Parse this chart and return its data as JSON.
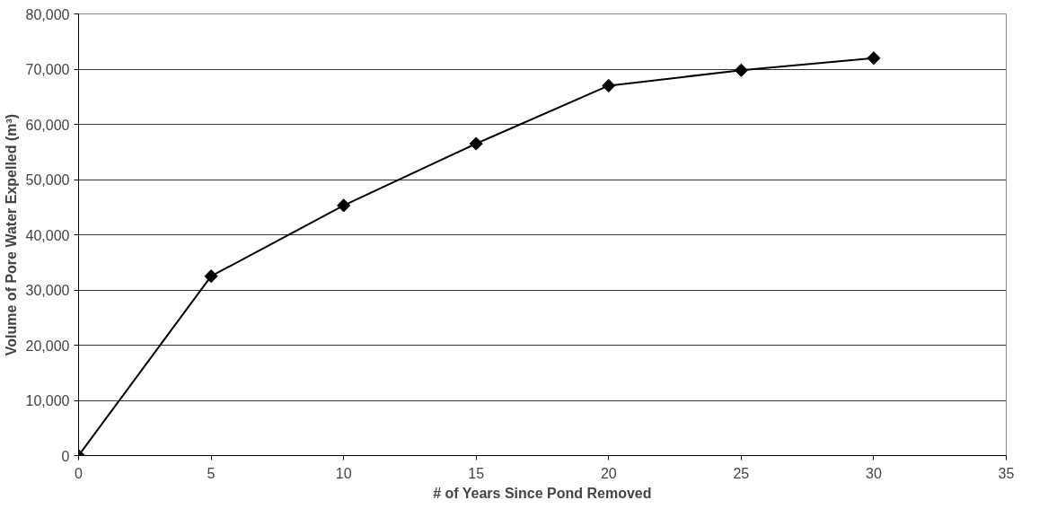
{
  "chart_data": {
    "type": "line",
    "xlabel": "# of Years Since Pond Removed",
    "ylabel": "Volume of Pore Water Expelled (m³)",
    "x": [
      0,
      5,
      10,
      15,
      20,
      25,
      30
    ],
    "series": [
      {
        "color": "#000000",
        "values": [
          0,
          32500,
          45300,
          56500,
          67000,
          69800,
          72000
        ]
      }
    ],
    "xlim": [
      0,
      35
    ],
    "xticks": [
      0,
      5,
      10,
      15,
      20,
      25,
      30,
      35
    ],
    "ylim": [
      0,
      80000
    ],
    "yticks": [
      {
        "value": 0,
        "label": "0"
      },
      {
        "value": 10000,
        "label": "10,000"
      },
      {
        "value": 20000,
        "label": "20,000"
      },
      {
        "value": 30000,
        "label": "30,000"
      },
      {
        "value": 40000,
        "label": "40,000"
      },
      {
        "value": 50000,
        "label": "50,000"
      },
      {
        "value": 60000,
        "label": "60,000"
      },
      {
        "value": 70000,
        "label": "70,000"
      },
      {
        "value": 80000,
        "label": "80,000"
      }
    ],
    "grid": "y",
    "marker": "diamond",
    "line_style": "solid"
  }
}
